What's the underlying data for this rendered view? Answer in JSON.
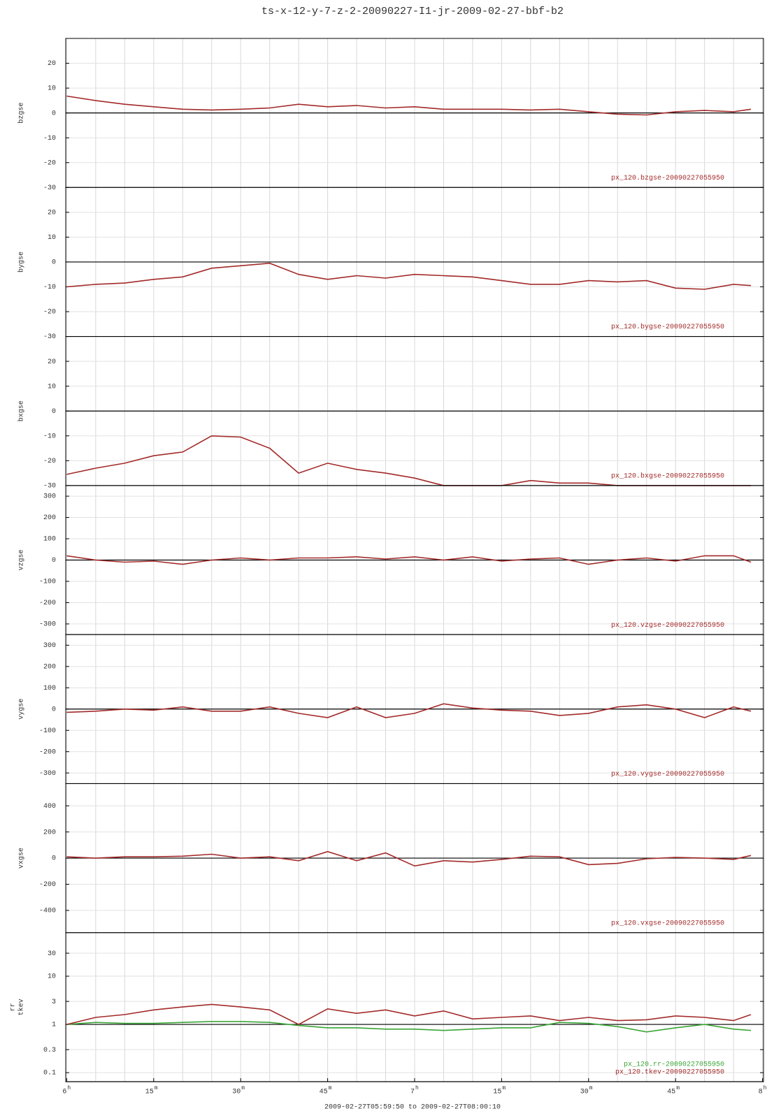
{
  "title": "ts-x-12-y-7-z-2-20090227-I1-jr-2009-02-27-bbf-b2",
  "time_range": "2009-02-27T05:59:50 to 2009-02-27T08:00:10",
  "chart_data": [
    {
      "type": "line",
      "xlim": [
        -0.17,
        120.17
      ],
      "x": [
        0,
        5,
        10,
        15,
        20,
        25,
        30,
        35,
        40,
        45,
        50,
        55,
        60,
        65,
        70,
        75,
        80,
        85,
        90,
        95,
        100,
        105,
        110,
        115,
        118
      ],
      "ylim": [
        -30,
        30
      ],
      "yticks": [
        -30,
        -20,
        -10,
        0,
        10,
        20
      ],
      "ref_line": 0,
      "series": [
        {
          "name": "bzgse",
          "label": "px_120.bzgse-20090227055950",
          "color": "#a32a2a",
          "values": [
            6.8,
            5,
            3.5,
            2.5,
            1.5,
            1.2,
            1.5,
            2,
            3.5,
            2.5,
            3,
            2,
            2.5,
            1.5,
            1.5,
            1.5,
            1.2,
            1.5,
            0.5,
            -0.5,
            -0.8,
            0.5,
            1,
            0.5,
            1.5
          ]
        }
      ]
    },
    {
      "type": "line",
      "xlim": [
        -0.17,
        120.17
      ],
      "x": [
        0,
        5,
        10,
        15,
        20,
        25,
        30,
        35,
        40,
        45,
        50,
        55,
        60,
        65,
        70,
        75,
        80,
        85,
        90,
        95,
        100,
        105,
        110,
        115,
        118
      ],
      "ylim": [
        -30,
        30
      ],
      "yticks": [
        -30,
        -20,
        -10,
        0,
        10,
        20
      ],
      "ref_line": 0,
      "series": [
        {
          "name": "bygse",
          "label": "px_120.bygse-20090227055950",
          "color": "#a32a2a",
          "values": [
            -10,
            -9,
            -8.5,
            -7,
            -6,
            -2.5,
            -1.5,
            -0.5,
            -5,
            -7,
            -5.5,
            -6.5,
            -5,
            -5.5,
            -6,
            -7.5,
            -9,
            -9,
            -7.5,
            -8,
            -7.5,
            -10.5,
            -11,
            -9,
            -9.5
          ]
        }
      ]
    },
    {
      "type": "line",
      "xlim": [
        -0.17,
        120.17
      ],
      "x": [
        0,
        5,
        10,
        15,
        20,
        25,
        30,
        35,
        40,
        45,
        50,
        55,
        60,
        65,
        70,
        75,
        80,
        85,
        90,
        95,
        100,
        105,
        110,
        115,
        118
      ],
      "ylim": [
        -30,
        30
      ],
      "yticks": [
        -30,
        -20,
        -10,
        0,
        10,
        20
      ],
      "ref_line": 0,
      "series": [
        {
          "name": "bxgse",
          "label": "px_120.bxgse-20090227055950",
          "color": "#a32a2a",
          "values": [
            -25.5,
            -23,
            -21,
            -18,
            -16.5,
            -10,
            -10.5,
            -15,
            -25,
            -21,
            -23.5,
            -25,
            -27,
            -30,
            -30,
            -30,
            -28,
            -29,
            -29,
            -30,
            -30,
            -30,
            -30,
            -30,
            -30
          ]
        }
      ]
    },
    {
      "type": "line",
      "xlim": [
        -0.17,
        120.17
      ],
      "x": [
        0,
        5,
        10,
        15,
        20,
        25,
        30,
        35,
        40,
        45,
        50,
        55,
        60,
        65,
        70,
        75,
        80,
        85,
        90,
        95,
        100,
        105,
        110,
        115,
        118
      ],
      "ylim": [
        -350,
        350
      ],
      "yticks": [
        -300,
        -200,
        -100,
        0,
        100,
        200,
        300
      ],
      "ref_line": 0,
      "series": [
        {
          "name": "vzgse",
          "label": "px_120.vzgse-20090227055950",
          "color": "#a32a2a",
          "values": [
            20,
            0,
            -10,
            -5,
            -20,
            0,
            10,
            0,
            10,
            10,
            15,
            5,
            15,
            0,
            15,
            -5,
            5,
            10,
            -20,
            0,
            10,
            -5,
            20,
            20,
            -10
          ]
        }
      ]
    },
    {
      "type": "line",
      "xlim": [
        -0.17,
        120.17
      ],
      "x": [
        0,
        5,
        10,
        15,
        20,
        25,
        30,
        35,
        40,
        45,
        50,
        55,
        60,
        65,
        70,
        75,
        80,
        85,
        90,
        95,
        100,
        105,
        110,
        115,
        118
      ],
      "ylim": [
        -350,
        350
      ],
      "yticks": [
        -300,
        -200,
        -100,
        0,
        100,
        200,
        300
      ],
      "ref_line": 0,
      "series": [
        {
          "name": "vygse",
          "label": "px_120.vygse-20090227055950",
          "color": "#a32a2a",
          "values": [
            -15,
            -10,
            0,
            -5,
            10,
            -10,
            -10,
            10,
            -20,
            -40,
            10,
            -40,
            -20,
            25,
            5,
            -5,
            -10,
            -30,
            -20,
            10,
            20,
            0,
            -40,
            10,
            -10
          ]
        }
      ]
    },
    {
      "type": "line",
      "xlim": [
        -0.17,
        120.17
      ],
      "x": [
        0,
        5,
        10,
        15,
        20,
        25,
        30,
        35,
        40,
        45,
        50,
        55,
        60,
        65,
        70,
        75,
        80,
        85,
        90,
        95,
        100,
        105,
        110,
        115,
        118
      ],
      "ylim": [
        -570,
        570
      ],
      "yticks": [
        -400,
        -200,
        0,
        200,
        400
      ],
      "ref_line": 0,
      "series": [
        {
          "name": "vxgse",
          "label": "px_120.vxgse-20090227055950",
          "color": "#a32a2a",
          "values": [
            10,
            0,
            10,
            10,
            15,
            30,
            0,
            10,
            -20,
            50,
            -20,
            40,
            -60,
            -20,
            -30,
            -10,
            15,
            10,
            -50,
            -40,
            -5,
            5,
            0,
            -10,
            20
          ]
        }
      ]
    },
    {
      "type": "line",
      "log": true,
      "xlim": [
        -0.17,
        120.17
      ],
      "x": [
        0,
        5,
        10,
        15,
        20,
        25,
        30,
        35,
        40,
        45,
        50,
        55,
        60,
        65,
        70,
        75,
        80,
        85,
        90,
        95,
        100,
        105,
        110,
        115,
        118
      ],
      "ylim": [
        0.065,
        80
      ],
      "yticks": [
        0.1,
        0.3,
        1,
        3,
        10,
        30
      ],
      "ref_line": 1,
      "xticks": [
        {
          "value": 0,
          "label": "6",
          "sup": "h"
        },
        {
          "value": 15,
          "label": "15",
          "sup": "m"
        },
        {
          "value": 30,
          "label": "30",
          "sup": "m"
        },
        {
          "value": 45,
          "label": "45",
          "sup": "m"
        },
        {
          "value": 60,
          "label": "7",
          "sup": "h"
        },
        {
          "value": 75,
          "label": "15",
          "sup": "m"
        },
        {
          "value": 90,
          "label": "30",
          "sup": "m"
        },
        {
          "value": 105,
          "label": "45",
          "sup": "m"
        },
        {
          "value": 120,
          "label": "8",
          "sup": "h"
        }
      ],
      "xgrid": [
        0,
        5,
        10,
        15,
        20,
        25,
        30,
        35,
        40,
        45,
        50,
        55,
        60,
        65,
        70,
        75,
        80,
        85,
        90,
        95,
        100,
        105,
        110,
        115,
        120
      ],
      "series": [
        {
          "name": "rr",
          "label": "px_120.rr-20090227055950",
          "color": "#3aa535",
          "values": [
            1.0,
            1.1,
            1.05,
            1.05,
            1.1,
            1.15,
            1.15,
            1.1,
            0.95,
            0.85,
            0.85,
            0.8,
            0.8,
            0.75,
            0.8,
            0.85,
            0.85,
            1.1,
            1.05,
            0.9,
            0.7,
            0.85,
            1.0,
            0.8,
            0.75
          ]
        },
        {
          "name": "tkev",
          "label": "px_120.tkev-20090227055950",
          "color": "#a32a2a",
          "values": [
            1.0,
            1.4,
            1.6,
            2.0,
            2.3,
            2.6,
            2.3,
            2.0,
            1.0,
            2.1,
            1.7,
            2.0,
            1.5,
            1.9,
            1.3,
            1.4,
            1.5,
            1.2,
            1.4,
            1.2,
            1.25,
            1.5,
            1.4,
            1.2,
            1.6
          ]
        }
      ]
    }
  ]
}
